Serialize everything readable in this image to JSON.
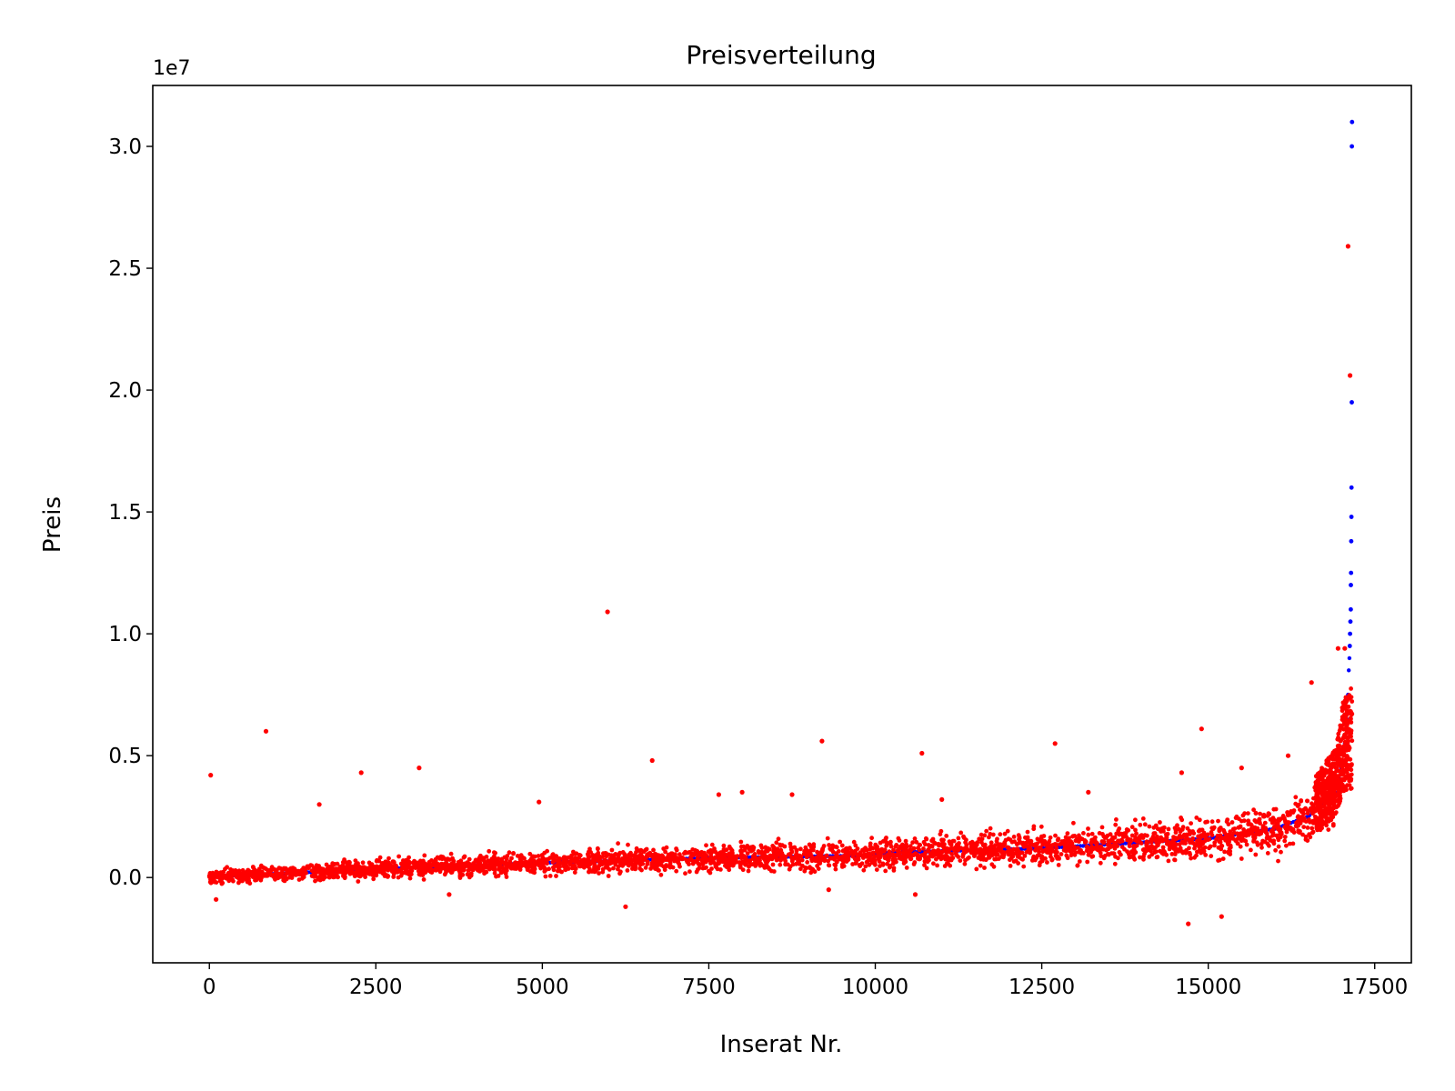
{
  "chart_data": {
    "type": "scatter",
    "title": "Preisverteilung",
    "xlabel": "Inserat Nr.",
    "ylabel": "Preis",
    "y_offset_label": "1e7",
    "xlim": [
      -850,
      18050
    ],
    "ylim": [
      -3500000,
      32500000
    ],
    "xticks": [
      0,
      2500,
      5000,
      7500,
      10000,
      12500,
      15000,
      17500
    ],
    "xtick_labels": [
      "0",
      "2500",
      "5000",
      "7500",
      "10000",
      "12500",
      "15000",
      "17500"
    ],
    "yticks": [
      0,
      5000000,
      10000000,
      15000000,
      20000000,
      25000000,
      30000000
    ],
    "ytick_labels": [
      "0.0",
      "0.5",
      "1.0",
      "1.5",
      "2.0",
      "2.5",
      "3.0"
    ],
    "grid": false,
    "n_points": 17150,
    "colors": {
      "actual": "#0000ff",
      "predicted": "#ff0000"
    },
    "series": [
      {
        "color": "#0000ff",
        "points": [
          [
            0,
            50000
          ],
          [
            1000,
            150000
          ],
          [
            2500,
            350000
          ],
          [
            5000,
            600000
          ],
          [
            7500,
            800000
          ],
          [
            9800,
            900000
          ],
          [
            10000,
            1000000
          ],
          [
            12500,
            1200000
          ],
          [
            15000,
            1600000
          ],
          [
            16000,
            2000000
          ],
          [
            16500,
            2500000
          ],
          [
            16900,
            3500000
          ],
          [
            17000,
            4500000
          ],
          [
            17050,
            5500000
          ],
          [
            17080,
            6500000
          ],
          [
            17100,
            7500000
          ],
          [
            17110,
            8500000
          ],
          [
            17120,
            9000000
          ],
          [
            17125,
            9500000
          ],
          [
            17130,
            10000000
          ],
          [
            17135,
            10500000
          ],
          [
            17140,
            11000000
          ],
          [
            17142,
            12000000
          ],
          [
            17145,
            12500000
          ],
          [
            17148,
            13800000
          ],
          [
            17150,
            14800000
          ],
          [
            17152,
            16000000
          ],
          [
            17155,
            19500000
          ],
          [
            17157,
            30000000
          ],
          [
            17160,
            31000000
          ]
        ]
      },
      {
        "color": "#ff0000",
        "outliers": [
          [
            20,
            4200000
          ],
          [
            850,
            6000000
          ],
          [
            2280,
            4300000
          ],
          [
            3150,
            4500000
          ],
          [
            5980,
            10900000
          ],
          [
            6650,
            4800000
          ],
          [
            9200,
            5600000
          ],
          [
            10700,
            5100000
          ],
          [
            12700,
            5500000
          ],
          [
            14900,
            6100000
          ],
          [
            14700,
            -1900000
          ],
          [
            15200,
            -1600000
          ],
          [
            6250,
            -1200000
          ],
          [
            3600,
            -700000
          ],
          [
            10600,
            -700000
          ],
          [
            9300,
            -500000
          ],
          [
            100,
            -900000
          ],
          [
            17100,
            25900000
          ],
          [
            17130,
            20600000
          ],
          [
            16550,
            8000000
          ],
          [
            16950,
            9400000
          ],
          [
            17050,
            9400000
          ],
          [
            1650,
            3000000
          ],
          [
            4950,
            3100000
          ],
          [
            7650,
            3400000
          ],
          [
            8000,
            3500000
          ],
          [
            8750,
            3400000
          ],
          [
            11000,
            3200000
          ],
          [
            13200,
            3500000
          ],
          [
            14600,
            4300000
          ],
          [
            15500,
            4500000
          ],
          [
            16200,
            5000000
          ]
        ]
      }
    ]
  }
}
